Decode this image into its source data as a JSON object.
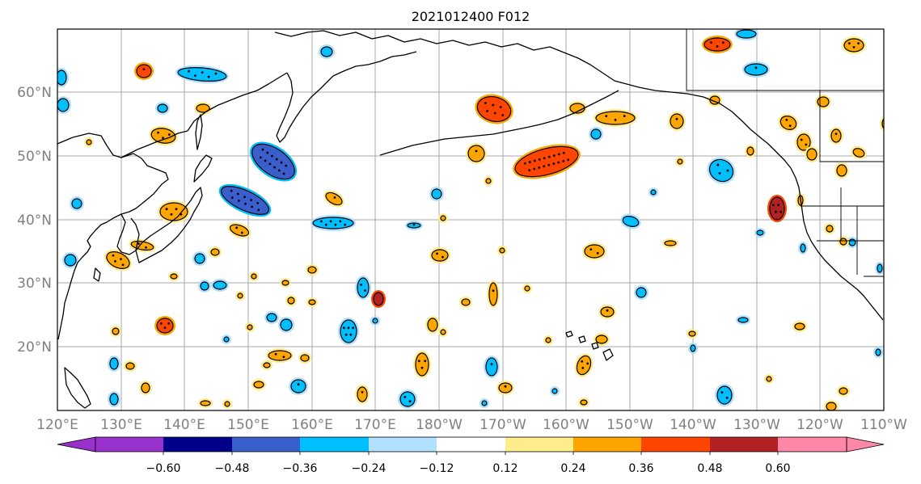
{
  "map": {
    "title": "2021012400 F012",
    "lat_labels": [
      "60°N",
      "50°N",
      "40°N",
      "30°N",
      "20°N"
    ],
    "lon_labels": [
      "120°E",
      "130°E",
      "140°E",
      "150°E",
      "160°E",
      "170°E",
      "180°W",
      "170°W",
      "160°W",
      "150°W",
      "140°W",
      "130°W",
      "120°W",
      "110°W"
    ]
  },
  "colorbar": {
    "tick_labels": [
      "−0.60",
      "−0.48",
      "−0.36",
      "−0.24",
      "−0.12",
      "0.12",
      "0.24",
      "0.36",
      "0.48",
      "0.60"
    ],
    "colors": [
      "#9932cc",
      "#00008b",
      "#3a5fcd",
      "#00bfff",
      "#b0e2ff",
      "#ffffff",
      "#ffec8b",
      "#ffa500",
      "#ff4500",
      "#b22222",
      "#ff88a8"
    ]
  }
}
